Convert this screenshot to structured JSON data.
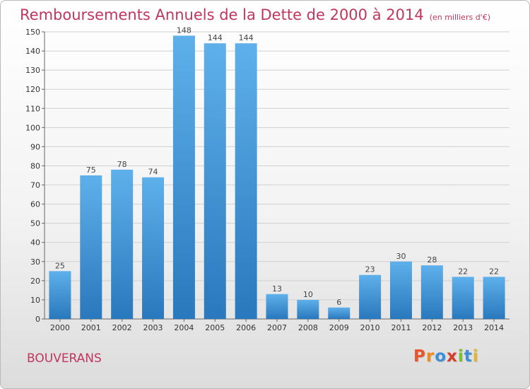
{
  "title": "Remboursements Annuels de la Dette de 2000 à 2014",
  "unit": "(en milliers d'€)",
  "commune": "BOUVERANS",
  "logo": {
    "letters": [
      "P",
      "r",
      "o",
      "x",
      "i",
      "t",
      "i"
    ],
    "colors": [
      "#e8542c",
      "#f08a1c",
      "#3a8fd8",
      "#d63a2a",
      "#7cbf2a",
      "#3a8fd8",
      "#e3b52a"
    ]
  },
  "colors": {
    "bar_top": "#5eb0ea",
    "bar_bottom": "#2a78bd",
    "title": "#c0365c",
    "grid": "#d0d0d0"
  },
  "chart_data": {
    "type": "bar",
    "categories": [
      "2000",
      "2001",
      "2002",
      "2003",
      "2004",
      "2005",
      "2006",
      "2007",
      "2008",
      "2009",
      "2010",
      "2011",
      "2012",
      "2013",
      "2014"
    ],
    "values": [
      25,
      75,
      78,
      74,
      148,
      144,
      144,
      13,
      10,
      6,
      23,
      30,
      28,
      22,
      22
    ],
    "ylim": [
      0,
      150
    ],
    "yticks": [
      0,
      10,
      20,
      30,
      40,
      50,
      60,
      70,
      80,
      90,
      100,
      110,
      120,
      130,
      140,
      150
    ],
    "grid": true
  }
}
